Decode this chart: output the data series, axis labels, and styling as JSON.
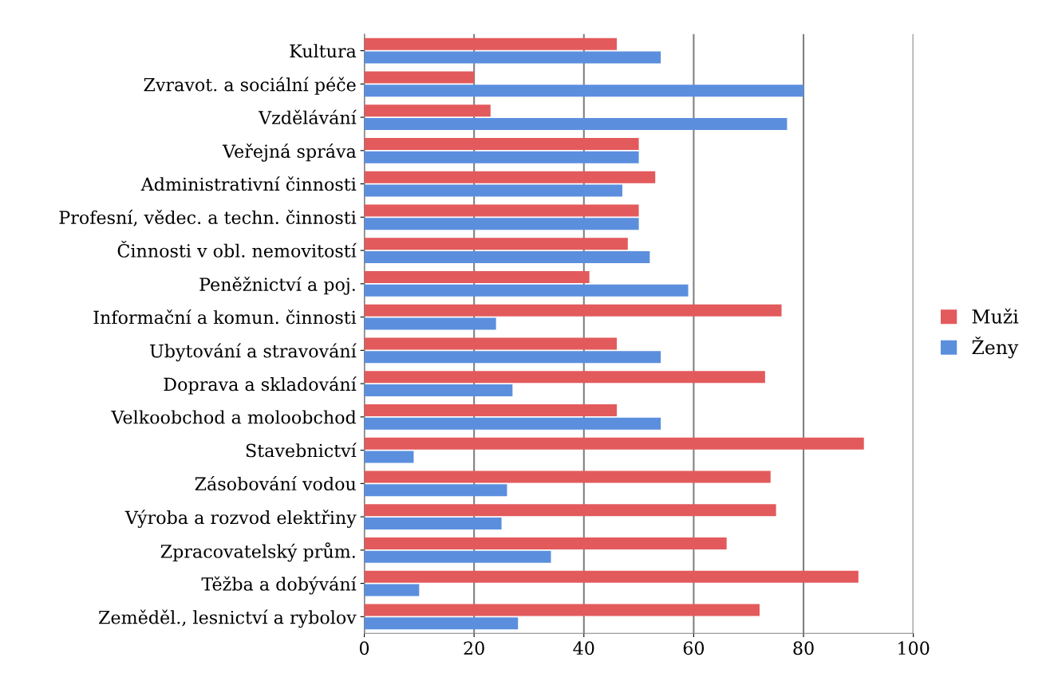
{
  "chart_data": {
    "type": "bar",
    "orientation": "horizontal",
    "categories": [
      "Kultura",
      "Zvravot. a sociální péče",
      "Vzdělávání",
      "Veřejná správa",
      "Administrativní činnosti",
      "Profesní, vědec. a techn. činnosti",
      "Činnosti v obl. nemovitostí",
      "Peněžnictví a poj.",
      "Informační a komun. činnosti",
      "Ubytování a stravování",
      "Doprava a skladování",
      "Velkoobchod a moloobchod",
      "Stavebnictví",
      "Zásobování vodou",
      "Výroba a rozvod elektřiny",
      "Zpracovatelský prům.",
      "Těžba a dobývání",
      "Zeměděl., lesnictví a rybolov"
    ],
    "series": [
      {
        "name": "Muži",
        "color": "#e35a5c",
        "values": [
          46,
          20,
          23,
          50,
          53,
          50,
          48,
          41,
          76,
          46,
          73,
          46,
          91,
          74,
          75,
          66,
          90,
          72
        ]
      },
      {
        "name": "Ženy",
        "color": "#5b8fde",
        "values": [
          54,
          80,
          77,
          50,
          47,
          50,
          52,
          59,
          24,
          54,
          27,
          54,
          9,
          26,
          25,
          34,
          10,
          28
        ]
      }
    ],
    "xlim": [
      0,
      100
    ],
    "xticks": [
      0,
      20,
      40,
      60,
      80,
      100
    ],
    "grid": "x",
    "legend": "right"
  }
}
